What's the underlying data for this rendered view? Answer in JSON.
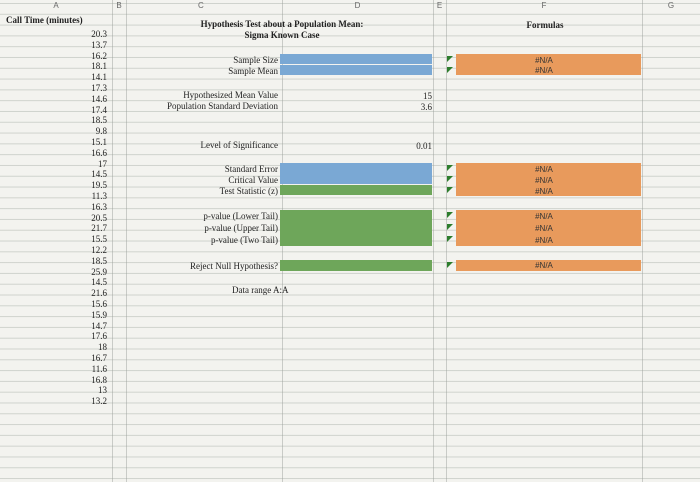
{
  "columns": [
    "A",
    "B",
    "C",
    "D",
    "E",
    "F",
    "G"
  ],
  "col_a_header": "Call Time (minutes)",
  "call_times": [
    "20.3",
    "13.7",
    "16.2",
    "18.1",
    "14.1",
    "17.3",
    "14.6",
    "17.4",
    "18.5",
    "9.8",
    "15.1",
    "16.6",
    "17",
    "14.5",
    "19.5",
    "11.3",
    "16.3",
    "20.5",
    "21.7",
    "15.5",
    "12.2",
    "18.5",
    "25.9",
    "14.5",
    "21.6",
    "15.6",
    "15.9",
    "14.7",
    "17.6",
    "18",
    "16.7",
    "11.6",
    "16.8",
    "13",
    "13.2"
  ],
  "title_line1": "Hypothesis Test about a Population Mean:",
  "title_line2": "Sigma Known Case",
  "formulas_header": "Formulas",
  "labels": {
    "sample_size": "Sample Size",
    "sample_mean": "Sample Mean",
    "hyp_mean": "Hypothesized Mean Value",
    "pop_sd": "Population Standard Deviation",
    "los": "Level of Significance",
    "std_err": "Standard Error",
    "crit_val": "Critical Value",
    "test_stat": "Test Statistic (z)",
    "p_lower": "p-value (Lower Tail)",
    "p_upper": "p-value (Upper Tail)",
    "p_two": "p-value (Two Tail)",
    "reject": "Reject Null Hypothesis?",
    "data_range": "Data range A:A"
  },
  "values": {
    "hyp_mean": "15",
    "pop_sd": "3.6",
    "los": "0.01"
  },
  "formulas": {
    "na": "#N/A"
  },
  "colors": {
    "blue": "#7aa8d4",
    "green": "#6ea65a",
    "orange": "#e89a5c"
  }
}
